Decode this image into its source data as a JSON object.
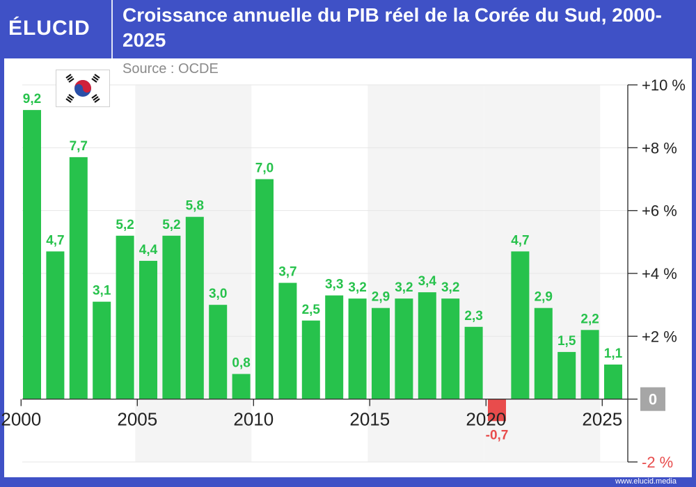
{
  "header": {
    "logo": "ÉLUCID",
    "title": "Croissance annuelle du PIB réel de la Corée du Sud, 2000-2025",
    "source": "Source : OCDE"
  },
  "footer": {
    "url": "www.elucid.media"
  },
  "colors": {
    "frame": "#3f51c6",
    "positive": "#27c24c",
    "negative": "#e84c4c",
    "zero_badge": "#a6a6a6",
    "band": "#f4f4f4",
    "grid": "#e6e6e6"
  },
  "chart_data": {
    "type": "bar",
    "title": "Croissance annuelle du PIB réel de la Corée du Sud, 2000-2025",
    "xlabel": "",
    "ylabel": "",
    "ylim": [
      -2,
      10
    ],
    "y_ticks": [
      {
        "value": 10,
        "label": "+10 %"
      },
      {
        "value": 8,
        "label": "+8 %"
      },
      {
        "value": 6,
        "label": "+6 %"
      },
      {
        "value": 4,
        "label": "+4 %"
      },
      {
        "value": 2,
        "label": "+2 %"
      },
      {
        "value": 0,
        "label": "0"
      },
      {
        "value": -2,
        "label": "-2 %"
      }
    ],
    "x_tick_labels": [
      "2000",
      "2005",
      "2010",
      "2015",
      "2020",
      "2025"
    ],
    "categories": [
      "2000",
      "2001",
      "2002",
      "2003",
      "2004",
      "2005",
      "2006",
      "2007",
      "2008",
      "2009",
      "2010",
      "2011",
      "2012",
      "2013",
      "2014",
      "2015",
      "2016",
      "2017",
      "2018",
      "2019",
      "2020",
      "2021",
      "2022",
      "2023",
      "2024",
      "2025"
    ],
    "values": [
      9.2,
      4.7,
      7.7,
      3.1,
      5.2,
      4.4,
      5.2,
      5.8,
      3.0,
      0.8,
      7.0,
      3.7,
      2.5,
      3.3,
      3.2,
      2.9,
      3.2,
      3.4,
      3.2,
      2.3,
      -0.7,
      4.7,
      2.9,
      1.5,
      2.2,
      1.1
    ],
    "value_labels": [
      "9,2",
      "4,7",
      "7,7",
      "3,1",
      "5,2",
      "4,4",
      "5,2",
      "5,8",
      "3,0",
      "0,8",
      "7,0",
      "3,7",
      "2,5",
      "3,3",
      "3,2",
      "2,9",
      "3,2",
      "3,4",
      "3,2",
      "2,3",
      "-0,7",
      "4,7",
      "2,9",
      "1,5",
      "2,2",
      "1,1"
    ],
    "grid": true,
    "legend": "none"
  }
}
